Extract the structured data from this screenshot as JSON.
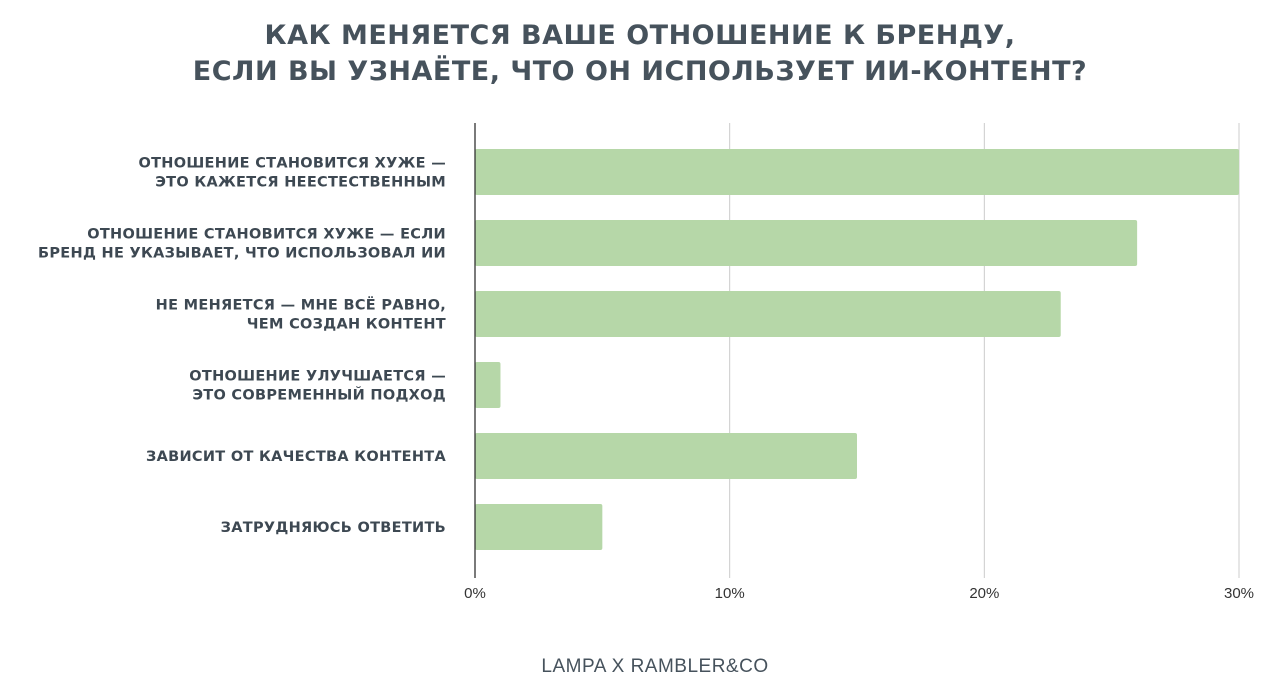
{
  "chart_data": {
    "type": "bar",
    "orientation": "horizontal",
    "title": [
      "КАК МЕНЯЕТСЯ ВАШЕ ОТНОШЕНИЕ К БРЕНДУ,",
      "ЕСЛИ ВЫ УЗНАЁТЕ, ЧТО ОН ИСПОЛЬЗУЕТ ИИ-КОНТЕНТ?"
    ],
    "categories": [
      [
        "ОТНОШЕНИЕ СТАНОВИТСЯ ХУЖЕ —",
        "ЭТО КАЖЕТСЯ НЕЕСТЕСТВЕННЫМ"
      ],
      [
        "ОТНОШЕНИЕ СТАНОВИТСЯ ХУЖЕ — ЕСЛИ",
        "БРЕНД НЕ УКАЗЫВАЕТ, ЧТО ИСПОЛЬЗОВАЛ ИИ"
      ],
      [
        "НЕ МЕНЯЕТСЯ — МНЕ ВСЁ РАВНО,",
        "ЧЕМ СОЗДАН КОНТЕНТ"
      ],
      [
        "ОТНОШЕНИЕ УЛУЧШАЕТСЯ —",
        "ЭТО СОВРЕМЕННЫЙ ПОДХОД"
      ],
      [
        "ЗАВИСИТ ОТ КАЧЕСТВА КОНТЕНТА"
      ],
      [
        "ЗАТРУДНЯЮСЬ ОТВЕТИТЬ"
      ]
    ],
    "values": [
      30,
      26,
      23,
      1,
      15,
      5
    ],
    "xlim": [
      0,
      30
    ],
    "xticks": [
      0,
      10,
      20,
      30
    ],
    "xtick_labels": [
      "0%",
      "10%",
      "20%",
      "30%"
    ],
    "grid": true,
    "bar_color": "#b6d7a8"
  },
  "source": "LAMPA X RAMBLER&CO"
}
